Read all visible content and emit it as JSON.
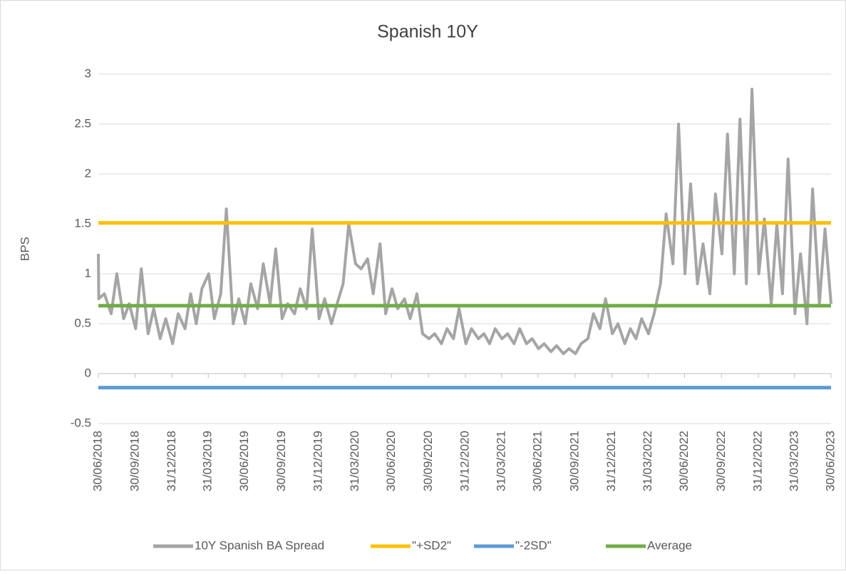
{
  "chart_data": {
    "type": "line",
    "title": "Spanish 10Y",
    "y_label": "BPS",
    "ylim": [
      -0.5,
      3
    ],
    "yticks": [
      -0.5,
      0,
      0.5,
      1,
      1.5,
      2,
      2.5,
      3
    ],
    "grid": true,
    "legend": "bottom",
    "xlim": [
      "30/06/2018",
      "30/06/2023"
    ],
    "xticks": [
      "30/06/2018",
      "30/09/2018",
      "31/12/2018",
      "31/03/2019",
      "30/06/2019",
      "30/09/2019",
      "31/12/2019",
      "31/03/2020",
      "30/06/2020",
      "30/09/2020",
      "31/12/2020",
      "31/03/2021",
      "30/06/2021",
      "30/09/2021",
      "31/12/2021",
      "31/03/2022",
      "30/06/2022",
      "30/09/2022",
      "31/12/2022",
      "31/03/2023",
      "30/06/2023"
    ],
    "series": [
      {
        "name": "10Y Spanish BA Spread",
        "color": "#a5a5a5",
        "x": [
          "30/06/2018",
          "01/07/2018",
          "15/07/2018",
          "01/08/2018",
          "15/08/2018",
          "01/09/2018",
          "15/09/2018",
          "01/10/2018",
          "15/10/2018",
          "01/11/2018",
          "15/11/2018",
          "01/12/2018",
          "15/12/2018",
          "01/01/2019",
          "15/01/2019",
          "01/02/2019",
          "15/02/2019",
          "01/03/2019",
          "15/03/2019",
          "01/04/2019",
          "15/04/2019",
          "01/05/2019",
          "15/05/2019",
          "01/06/2019",
          "15/06/2019",
          "01/07/2019",
          "15/07/2019",
          "01/08/2019",
          "15/08/2019",
          "01/09/2019",
          "15/09/2019",
          "01/10/2019",
          "15/10/2019",
          "01/11/2019",
          "15/11/2019",
          "01/12/2019",
          "15/12/2019",
          "01/01/2020",
          "15/01/2020",
          "01/02/2020",
          "15/02/2020",
          "01/03/2020",
          "15/03/2020",
          "01/04/2020",
          "15/04/2020",
          "01/05/2020",
          "15/05/2020",
          "01/06/2020",
          "15/06/2020",
          "01/07/2020",
          "15/07/2020",
          "01/08/2020",
          "15/08/2020",
          "01/09/2020",
          "15/09/2020",
          "01/10/2020",
          "15/10/2020",
          "01/11/2020",
          "15/11/2020",
          "01/12/2020",
          "15/12/2020",
          "01/01/2021",
          "15/01/2021",
          "01/02/2021",
          "15/02/2021",
          "01/03/2021",
          "15/03/2021",
          "01/04/2021",
          "15/04/2021",
          "01/05/2021",
          "15/05/2021",
          "01/06/2021",
          "15/06/2021",
          "01/07/2021",
          "15/07/2021",
          "01/08/2021",
          "15/08/2021",
          "01/09/2021",
          "15/09/2021",
          "01/10/2021",
          "15/10/2021",
          "01/11/2021",
          "15/11/2021",
          "01/12/2021",
          "15/12/2021",
          "01/01/2022",
          "15/01/2022",
          "01/02/2022",
          "15/02/2022",
          "01/03/2022",
          "15/03/2022",
          "01/04/2022",
          "15/04/2022",
          "01/05/2022",
          "15/05/2022",
          "01/06/2022",
          "15/06/2022",
          "01/07/2022",
          "15/07/2022",
          "01/08/2022",
          "15/08/2022",
          "01/09/2022",
          "15/09/2022",
          "01/10/2022",
          "15/10/2022",
          "01/11/2022",
          "15/11/2022",
          "01/12/2022",
          "15/12/2022",
          "01/01/2023",
          "15/01/2023",
          "01/02/2023",
          "15/02/2023",
          "01/03/2023",
          "15/03/2023",
          "01/04/2023",
          "15/04/2023",
          "01/05/2023",
          "15/05/2023",
          "01/06/2023",
          "15/06/2023",
          "30/06/2023"
        ],
        "values": [
          1.2,
          0.75,
          0.8,
          0.6,
          1.0,
          0.55,
          0.7,
          0.45,
          1.05,
          0.4,
          0.65,
          0.35,
          0.55,
          0.3,
          0.6,
          0.45,
          0.8,
          0.5,
          0.85,
          1.0,
          0.55,
          0.8,
          1.65,
          0.5,
          0.75,
          0.5,
          0.9,
          0.65,
          1.1,
          0.7,
          1.25,
          0.55,
          0.7,
          0.6,
          0.85,
          0.65,
          1.45,
          0.55,
          0.75,
          0.5,
          0.7,
          0.9,
          1.5,
          1.1,
          1.05,
          1.15,
          0.8,
          1.3,
          0.6,
          0.85,
          0.65,
          0.75,
          0.55,
          0.8,
          0.4,
          0.35,
          0.4,
          0.3,
          0.45,
          0.35,
          0.65,
          0.3,
          0.45,
          0.35,
          0.4,
          0.3,
          0.45,
          0.35,
          0.4,
          0.3,
          0.45,
          0.3,
          0.35,
          0.25,
          0.3,
          0.22,
          0.28,
          0.2,
          0.25,
          0.2,
          0.3,
          0.35,
          0.6,
          0.45,
          0.75,
          0.4,
          0.5,
          0.3,
          0.45,
          0.35,
          0.55,
          0.4,
          0.6,
          0.9,
          1.6,
          1.1,
          2.5,
          1.0,
          1.9,
          0.9,
          1.3,
          0.8,
          1.8,
          1.2,
          2.4,
          1.0,
          2.55,
          0.9,
          2.85,
          1.0,
          1.55,
          0.7,
          1.5,
          0.8,
          2.15,
          0.6,
          1.2,
          0.5,
          1.85,
          0.7,
          1.45,
          0.7
        ]
      },
      {
        "name": "\"+SD2\"",
        "color": "#ffc000",
        "x": [
          "30/06/2018",
          "30/06/2023"
        ],
        "values": [
          1.51,
          1.51
        ]
      },
      {
        "name": "\"-2SD\"",
        "color": "#5b9bd5",
        "x": [
          "30/06/2018",
          "30/06/2023"
        ],
        "values": [
          -0.14,
          -0.14
        ]
      },
      {
        "name": "Average",
        "color": "#70ad47",
        "x": [
          "30/06/2018",
          "30/06/2023"
        ],
        "values": [
          0.68,
          0.68
        ]
      }
    ]
  }
}
